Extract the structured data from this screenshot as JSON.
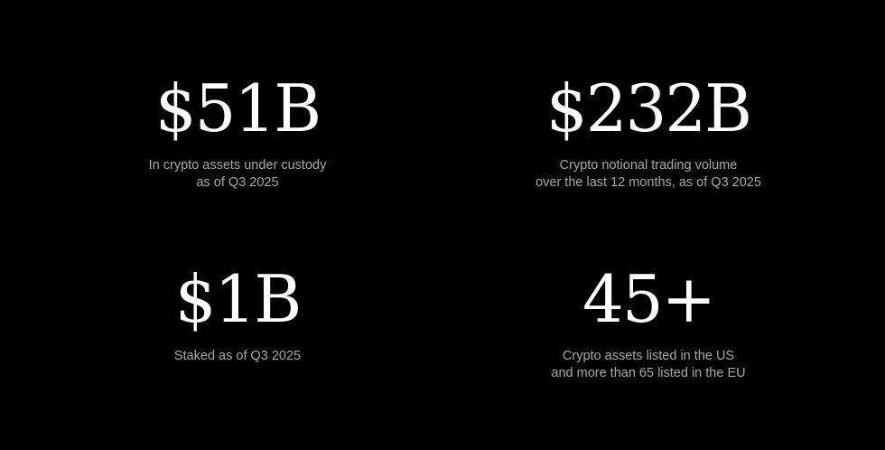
{
  "stats": [
    {
      "value": "$51B",
      "caption": [
        "In crypto assets under custody",
        "as of Q3 2025"
      ]
    },
    {
      "value": "$232B",
      "caption": [
        "Crypto notional trading volume",
        "over the last 12 months, as of Q3 2025"
      ]
    },
    {
      "value": "$1B",
      "caption": [
        "Staked as of Q3 2025"
      ]
    },
    {
      "value": "45+",
      "caption": [
        "Crypto assets listed in the US",
        "and more than 65 listed in the EU"
      ]
    }
  ]
}
